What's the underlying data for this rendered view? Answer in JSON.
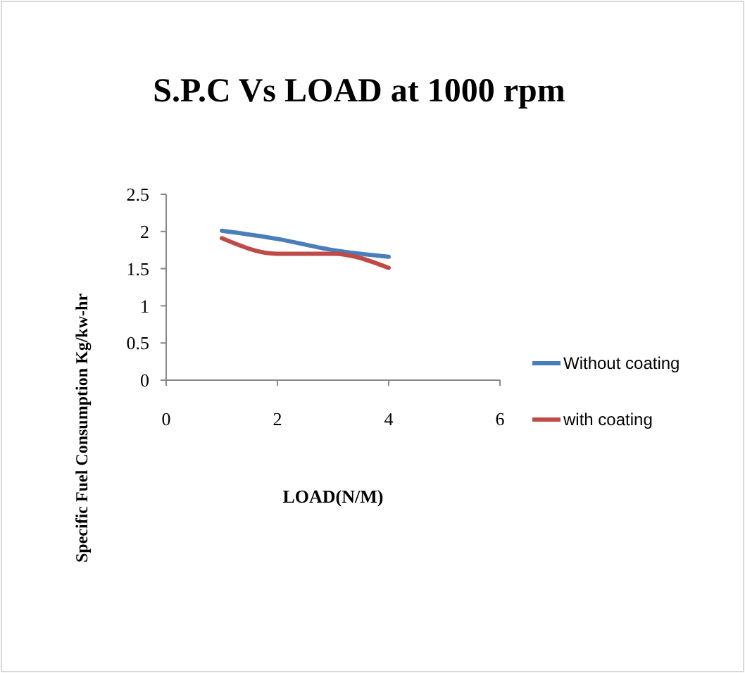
{
  "chart_data": {
    "type": "line",
    "title": "S.P.C Vs LOAD at 1000 rpm",
    "xlabel": "LOAD(N/M)",
    "ylabel": "Specific Fuel Consumption Kg/kw-hr",
    "x": [
      1,
      2,
      3,
      4
    ],
    "series": [
      {
        "name": "Without coating",
        "color": "#4a7ebb",
        "values": [
          2.01,
          1.9,
          1.75,
          1.66
        ]
      },
      {
        "name": "with coating",
        "color": "#be4b48",
        "values": [
          1.91,
          1.7,
          1.7,
          1.51
        ]
      }
    ],
    "xlim": [
      0,
      6
    ],
    "xticks": [
      0,
      2,
      4,
      6
    ],
    "ylim": [
      0,
      2.5
    ],
    "yticks": [
      0,
      0.5,
      1,
      1.5,
      2,
      2.5
    ],
    "legend": "right",
    "grid": false,
    "marker": "none",
    "line_style": "solid"
  }
}
